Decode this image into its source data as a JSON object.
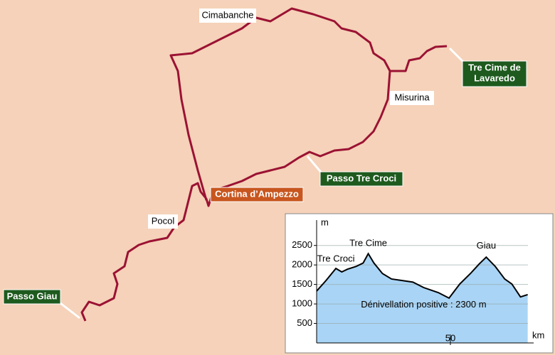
{
  "map": {
    "labels": [
      {
        "lines": [
          "Cimabanche"
        ]
      },
      {
        "lines": [
          "Misurina"
        ]
      },
      {
        "lines": [
          "Pocol"
        ]
      },
      {
        "lines": [
          "Tre Cime de",
          "Lavaredo"
        ]
      },
      {
        "lines": [
          "Passo Tre Croci"
        ]
      },
      {
        "lines": [
          "Cortina d’Ampezzo"
        ]
      },
      {
        "lines": [
          "Passo Giau"
        ]
      }
    ]
  },
  "chart_data": {
    "type": "area",
    "y_label": "m",
    "x_label": "km",
    "x": [
      0,
      3.5,
      7.2,
      9.4,
      11.5,
      14.7,
      17.4,
      19.3,
      21.4,
      24.6,
      28,
      32,
      36,
      40,
      45.5,
      49.5,
      53.5,
      57.5,
      60.7,
      63.4,
      66.8,
      70.3,
      73,
      76.2,
      78.9
    ],
    "series": [
      {
        "color": "#a9d4f5",
        "values": [
          1330,
          1600,
          1910,
          1820,
          1890,
          1960,
          2050,
          2290,
          2050,
          1780,
          1640,
          1600,
          1560,
          1420,
          1290,
          1150,
          1510,
          1780,
          2020,
          2200,
          1960,
          1640,
          1510,
          1180,
          1240
        ]
      }
    ],
    "xlim": [
      0,
      79
    ],
    "xticks": [
      50
    ],
    "ylim": [
      0,
      3150
    ],
    "yticks": [
      500,
      1000,
      1500,
      2000,
      2500
    ],
    "grid": true,
    "annotations": [
      {
        "text": "Tre Croci",
        "x": 7.2,
        "y": 2150
      },
      {
        "text": "Tre Cime",
        "x": 19.3,
        "y": 2550
      },
      {
        "text": "Giau",
        "x": 63.4,
        "y": 2480
      },
      {
        "text": "Dénivellation positive : 2300 m",
        "x": 40,
        "y": 970
      }
    ]
  }
}
